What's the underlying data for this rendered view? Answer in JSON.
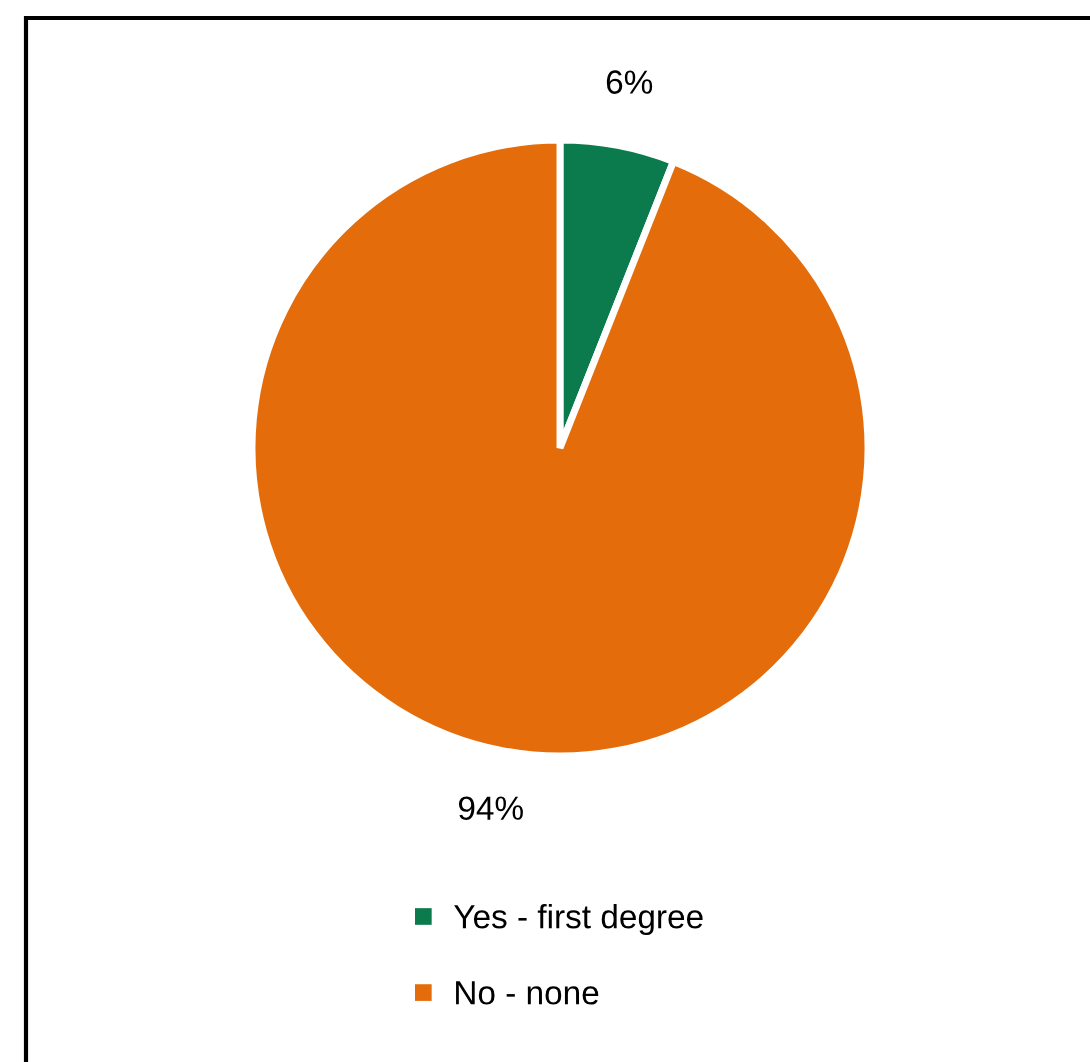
{
  "chart_data": {
    "type": "pie",
    "categories": [
      "Yes - first degree",
      "No - none"
    ],
    "values": [
      6,
      94
    ],
    "colors": [
      "#0b7a4c",
      "#e46c0a"
    ],
    "value_labels": [
      "6%",
      "94%"
    ],
    "legend": "bottom"
  }
}
